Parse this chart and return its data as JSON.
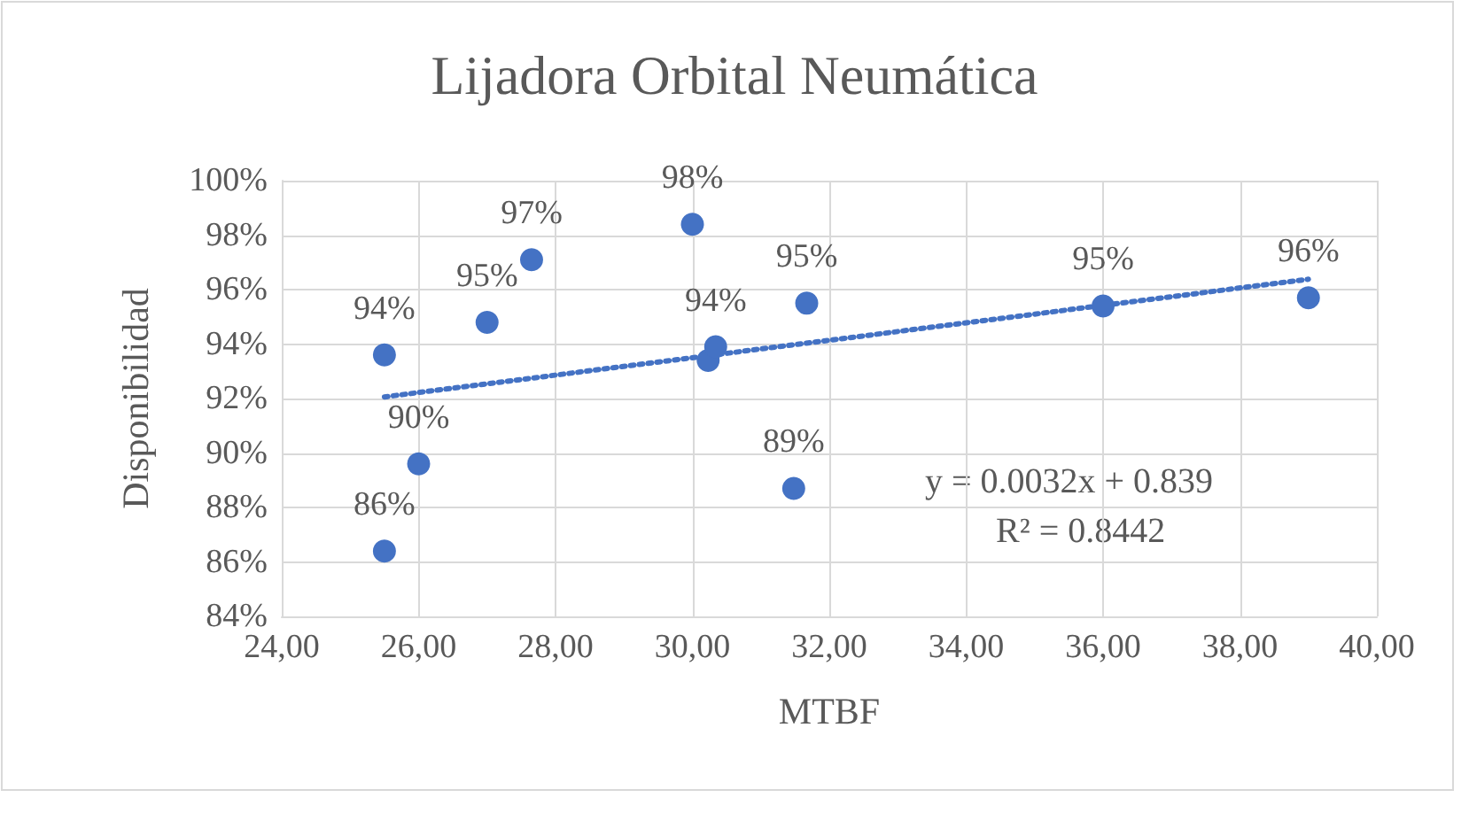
{
  "chart_data": {
    "type": "scatter",
    "title": "Lijadora Orbital Neumática",
    "xlabel": "MTBF",
    "ylabel": "Disponibilidad",
    "xlim": [
      24,
      40
    ],
    "xticks": [
      {
        "value": 24,
        "label": "24,00"
      },
      {
        "value": 26,
        "label": "26,00"
      },
      {
        "value": 28,
        "label": "28,00"
      },
      {
        "value": 30,
        "label": "30,00"
      },
      {
        "value": 32,
        "label": "32,00"
      },
      {
        "value": 34,
        "label": "34,00"
      },
      {
        "value": 36,
        "label": "36,00"
      },
      {
        "value": 38,
        "label": "38,00"
      },
      {
        "value": 40,
        "label": "40,00"
      }
    ],
    "ylim": [
      84,
      100
    ],
    "yticks": [
      {
        "value": 84,
        "label": "84%"
      },
      {
        "value": 86,
        "label": "86%"
      },
      {
        "value": 88,
        "label": "88%"
      },
      {
        "value": 90,
        "label": "90%"
      },
      {
        "value": 92,
        "label": "92%"
      },
      {
        "value": 94,
        "label": "94%"
      },
      {
        "value": 96,
        "label": "96%"
      },
      {
        "value": 98,
        "label": "98%"
      },
      {
        "value": 100,
        "label": "100%"
      }
    ],
    "grid": true,
    "marker": "circle",
    "series": [
      {
        "color": "#4472c4",
        "x": [
          25.5,
          25.5,
          26.0,
          27.0,
          27.65,
          30.0,
          30.23,
          30.34,
          31.48,
          31.67,
          36.0,
          39.0
        ],
        "values": [
          86.4,
          93.6,
          89.6,
          94.8,
          97.1,
          98.4,
          93.4,
          93.9,
          88.7,
          95.5,
          95.4,
          95.7
        ],
        "value_labels": [
          "86%",
          "94%",
          "90%",
          "95%",
          "97%",
          "98%",
          null,
          "94%",
          "89%",
          "95%",
          "95%",
          "96%"
        ]
      },
      {
        "type": "line",
        "color": "#4472c4",
        "line_style": "dotted",
        "marker": "none",
        "x": [
          25.5,
          39.0
        ],
        "values": [
          92.06,
          96.38
        ]
      }
    ],
    "annotations": [
      "y = 0.0032x + 0.839",
      "R² = 0.8442"
    ]
  }
}
